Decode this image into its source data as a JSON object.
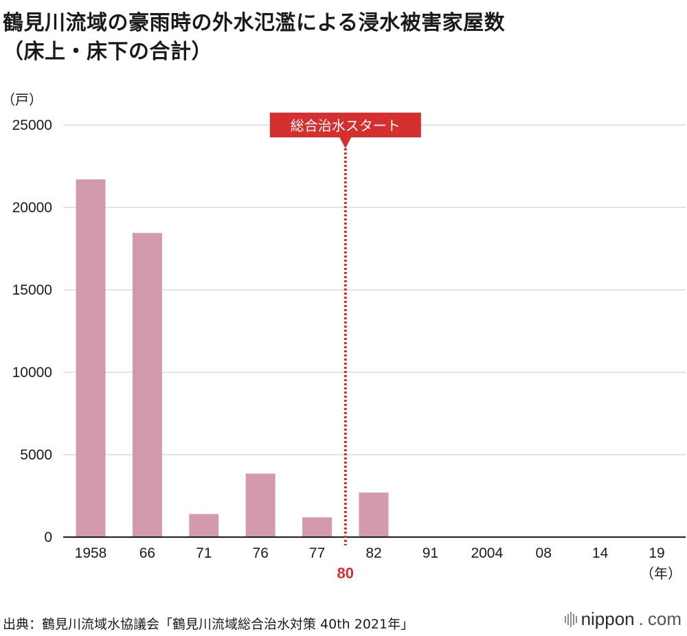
{
  "title": {
    "line1": "鶴見川流域の豪雨時の外水氾濫による浸水被害家屋数",
    "line2": "（床上・床下の合計）"
  },
  "chart_data": {
    "type": "bar",
    "ylabel": "（戸）",
    "xlabel": "（年）",
    "ylim": [
      0,
      25000
    ],
    "yticks": [
      0,
      5000,
      10000,
      15000,
      20000,
      25000
    ],
    "categories": [
      "1958",
      "66",
      "71",
      "76",
      "77",
      "82",
      "91",
      "2004",
      "08",
      "14",
      "19"
    ],
    "values": [
      21700,
      18450,
      1400,
      3850,
      1200,
      2700,
      0,
      0,
      0,
      0,
      0
    ],
    "bar_color": "#d39aac",
    "grid": true,
    "annotation": {
      "label": "総合治水スタート",
      "year_label": "80",
      "position_between": [
        "77",
        "82"
      ],
      "color": "#d62f2f"
    }
  },
  "footer": {
    "source": "出典：鶴見川流域水協議会「鶴見川流域総合治水対策 40th 2021年」"
  },
  "brand": {
    "name": "nippon",
    "dot": ".",
    "suffix": "com"
  }
}
